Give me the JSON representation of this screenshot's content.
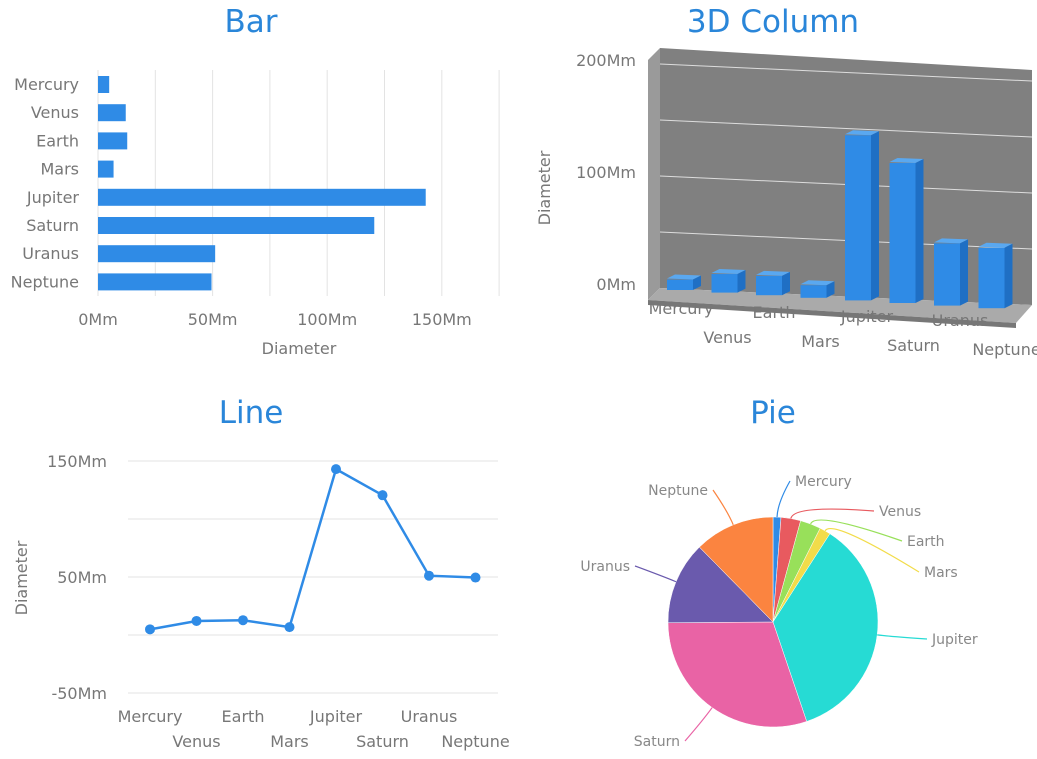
{
  "chart_data": [
    {
      "type": "bar",
      "title": "Bar",
      "xlabel": "Diameter",
      "ylabel": "",
      "categories": [
        "Mercury",
        "Venus",
        "Earth",
        "Mars",
        "Jupiter",
        "Saturn",
        "Uranus",
        "Neptune"
      ],
      "values": [
        4.879,
        12.104,
        12.756,
        6.792,
        142.984,
        120.536,
        51.118,
        49.528
      ],
      "xlim": [
        0,
        175
      ],
      "ticks": [
        "0Mm",
        "50Mm",
        "100Mm",
        "150Mm"
      ],
      "grid": true,
      "color": "#2f8be6"
    },
    {
      "type": "bar",
      "title": "3D Column",
      "xlabel": "",
      "ylabel": "Diameter",
      "categories": [
        "Mercury",
        "Venus",
        "Earth",
        "Mars",
        "Jupiter",
        "Saturn",
        "Uranus",
        "Neptune"
      ],
      "values": [
        4.879,
        12.104,
        12.756,
        6.792,
        142.984,
        120.536,
        51.118,
        49.528
      ],
      "ylim": [
        0,
        200
      ],
      "ticks": [
        "0Mm",
        "100Mm",
        "200Mm"
      ],
      "grid": true,
      "color": "#2f8be6"
    },
    {
      "type": "line",
      "title": "Line",
      "xlabel": "",
      "ylabel": "Diameter",
      "categories": [
        "Mercury",
        "Venus",
        "Earth",
        "Mars",
        "Jupiter",
        "Saturn",
        "Uranus",
        "Neptune"
      ],
      "values": [
        4.879,
        12.104,
        12.756,
        6.792,
        142.984,
        120.536,
        51.118,
        49.528
      ],
      "ylim": [
        -50,
        150
      ],
      "ticks": [
        "-50Mm",
        "50Mm",
        "150Mm"
      ],
      "grid": true,
      "color": "#2f8be6"
    },
    {
      "type": "pie",
      "title": "Pie",
      "categories": [
        "Mercury",
        "Venus",
        "Earth",
        "Mars",
        "Jupiter",
        "Saturn",
        "Uranus",
        "Neptune"
      ],
      "values": [
        4.879,
        12.104,
        12.756,
        6.792,
        142.984,
        120.536,
        51.118,
        49.528
      ],
      "colors": [
        "#2f8be6",
        "#e85a5f",
        "#98e05a",
        "#f2dc4a",
        "#26dbd4",
        "#e963a5",
        "#6a5aad",
        "#fb8440"
      ]
    }
  ]
}
